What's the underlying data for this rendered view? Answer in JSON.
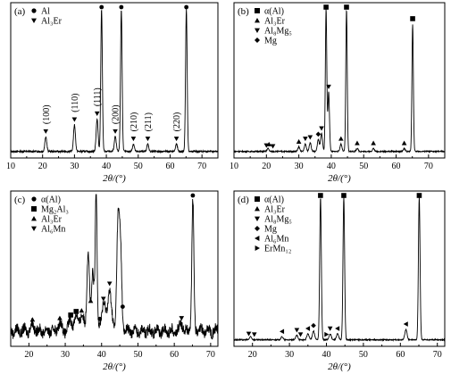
{
  "chart_data": [
    {
      "type": "line",
      "panel_label": "(a)",
      "xlabel": "2θ/(°)",
      "xlim": [
        10,
        75
      ],
      "xticks": [
        10,
        20,
        30,
        40,
        50,
        60,
        70
      ],
      "legend": [
        {
          "marker": "circle",
          "label": "Al"
        },
        {
          "marker": "tri-down",
          "label": "Al₃Er"
        }
      ],
      "baseline": 0.02,
      "noise": 0.006,
      "peaks": [
        {
          "x": 21.0,
          "h": 0.1,
          "w": 0.3
        },
        {
          "x": 30.0,
          "h": 0.18,
          "w": 0.3
        },
        {
          "x": 37.1,
          "h": 0.22,
          "w": 0.3
        },
        {
          "x": 38.5,
          "h": 0.96,
          "w": 0.25
        },
        {
          "x": 42.8,
          "h": 0.1,
          "w": 0.3
        },
        {
          "x": 44.7,
          "h": 0.96,
          "w": 0.25
        },
        {
          "x": 48.5,
          "h": 0.05,
          "w": 0.3
        },
        {
          "x": 53.0,
          "h": 0.05,
          "w": 0.3
        },
        {
          "x": 62.0,
          "h": 0.05,
          "w": 0.3
        },
        {
          "x": 65.1,
          "h": 0.96,
          "w": 0.25
        }
      ],
      "markers": [
        {
          "x": 38.5,
          "sym": "circle"
        },
        {
          "x": 44.7,
          "sym": "circle"
        },
        {
          "x": 65.1,
          "sym": "circle"
        },
        {
          "x": 21.0,
          "sym": "tri-down"
        },
        {
          "x": 30.0,
          "sym": "tri-down"
        },
        {
          "x": 37.1,
          "sym": "tri-down"
        },
        {
          "x": 42.8,
          "sym": "tri-down"
        },
        {
          "x": 48.5,
          "sym": "tri-down"
        },
        {
          "x": 53.0,
          "sym": "tri-down"
        },
        {
          "x": 62.0,
          "sym": "tri-down"
        }
      ],
      "annotations": [
        {
          "x": 21.0,
          "text": "(100)"
        },
        {
          "x": 30.0,
          "text": "(110)"
        },
        {
          "x": 37.1,
          "text": "(111)"
        },
        {
          "x": 42.8,
          "text": "(200)"
        },
        {
          "x": 48.5,
          "text": "(210)"
        },
        {
          "x": 53.0,
          "text": "(211)"
        },
        {
          "x": 62.0,
          "text": "(220)"
        }
      ]
    },
    {
      "type": "line",
      "panel_label": "(b)",
      "xlabel": "2θ/(°)",
      "xlim": [
        10,
        75
      ],
      "xticks": [
        10,
        20,
        30,
        40,
        50,
        60,
        70
      ],
      "legend": [
        {
          "marker": "square",
          "label": "α(Al)"
        },
        {
          "marker": "tri-up",
          "label": "Al₃Er"
        },
        {
          "marker": "tri-down",
          "label": "Al₈Mg₅"
        },
        {
          "marker": "diamond",
          "label": "Mg"
        }
      ],
      "baseline": 0.02,
      "noise": 0.004,
      "peaks": [
        {
          "x": 20.5,
          "h": 0.02,
          "w": 0.3
        },
        {
          "x": 30.0,
          "h": 0.03,
          "w": 0.3
        },
        {
          "x": 32.0,
          "h": 0.05,
          "w": 0.3
        },
        {
          "x": 33.5,
          "h": 0.06,
          "w": 0.3
        },
        {
          "x": 36.0,
          "h": 0.08,
          "w": 0.3
        },
        {
          "x": 37.0,
          "h": 0.12,
          "w": 0.3
        },
        {
          "x": 38.4,
          "h": 0.96,
          "w": 0.22
        },
        {
          "x": 39.2,
          "h": 0.4,
          "w": 0.25
        },
        {
          "x": 43.0,
          "h": 0.05,
          "w": 0.3
        },
        {
          "x": 44.7,
          "h": 0.96,
          "w": 0.22
        },
        {
          "x": 48.0,
          "h": 0.02,
          "w": 0.3
        },
        {
          "x": 53.0,
          "h": 0.02,
          "w": 0.3
        },
        {
          "x": 62.5,
          "h": 0.02,
          "w": 0.3
        },
        {
          "x": 65.1,
          "h": 0.86,
          "w": 0.22
        }
      ],
      "markers": [
        {
          "x": 38.4,
          "sym": "square"
        },
        {
          "x": 44.7,
          "sym": "square"
        },
        {
          "x": 65.1,
          "sym": "square"
        },
        {
          "x": 39.2,
          "sym": "tri-down"
        },
        {
          "x": 20.0,
          "sym": "tri-down"
        },
        {
          "x": 22.0,
          "sym": "tri-down"
        },
        {
          "x": 20.8,
          "sym": "tri-up"
        },
        {
          "x": 30.0,
          "sym": "tri-up"
        },
        {
          "x": 32.0,
          "sym": "tri-down"
        },
        {
          "x": 33.5,
          "sym": "tri-down"
        },
        {
          "x": 36.0,
          "sym": "diamond"
        },
        {
          "x": 37.0,
          "sym": "tri-down"
        },
        {
          "x": 43.0,
          "sym": "tri-up"
        },
        {
          "x": 48.0,
          "sym": "tri-up"
        },
        {
          "x": 53.0,
          "sym": "tri-up"
        },
        {
          "x": 62.5,
          "sym": "tri-up"
        }
      ]
    },
    {
      "type": "line",
      "panel_label": "(c)",
      "xlabel": "2θ/(°)",
      "xlim": [
        15,
        72
      ],
      "xticks": [
        20,
        30,
        40,
        50,
        60,
        70
      ],
      "legend": [
        {
          "marker": "circle",
          "label": "α(Al)"
        },
        {
          "marker": "square",
          "label": "Mg₂Al₃"
        },
        {
          "marker": "tri-up",
          "label": "Al₃Er"
        },
        {
          "marker": "tri-down",
          "label": "Al₆Mn"
        }
      ],
      "baseline": 0.08,
      "noise": 0.035,
      "peaks": [
        {
          "x": 21.0,
          "h": 0.04,
          "w": 0.5
        },
        {
          "x": 28.5,
          "h": 0.05,
          "w": 0.5
        },
        {
          "x": 31.5,
          "h": 0.07,
          "w": 0.5
        },
        {
          "x": 33.0,
          "h": 0.09,
          "w": 0.5
        },
        {
          "x": 34.5,
          "h": 0.1,
          "w": 0.6
        },
        {
          "x": 36.3,
          "h": 0.55,
          "w": 0.35
        },
        {
          "x": 37.6,
          "h": 0.4,
          "w": 0.35
        },
        {
          "x": 38.5,
          "h": 0.96,
          "w": 0.25
        },
        {
          "x": 40.5,
          "h": 0.18,
          "w": 0.6
        },
        {
          "x": 42.2,
          "h": 0.28,
          "w": 0.5
        },
        {
          "x": 44.5,
          "h": 0.72,
          "w": 0.35
        },
        {
          "x": 45.2,
          "h": 0.55,
          "w": 0.35
        },
        {
          "x": 62.0,
          "h": 0.05,
          "w": 0.4
        },
        {
          "x": 65.1,
          "h": 0.88,
          "w": 0.28
        }
      ],
      "markers": [
        {
          "x": 39.5,
          "sym": "circle"
        },
        {
          "x": 45.8,
          "sym": "circle"
        },
        {
          "x": 65.1,
          "sym": "circle"
        },
        {
          "x": 37.0,
          "sym": "tri-up"
        },
        {
          "x": 21.0,
          "sym": "tri-up"
        },
        {
          "x": 28.5,
          "sym": "tri-up"
        },
        {
          "x": 31.5,
          "sym": "square"
        },
        {
          "x": 33.0,
          "sym": "square"
        },
        {
          "x": 34.5,
          "sym": "tri-up"
        },
        {
          "x": 40.5,
          "sym": "tri-down"
        },
        {
          "x": 42.2,
          "sym": "tri-down"
        },
        {
          "x": 62.0,
          "sym": "tri-down"
        }
      ]
    },
    {
      "type": "line",
      "panel_label": "(d)",
      "xlabel": "2θ/(°)",
      "xlim": [
        15,
        72
      ],
      "xticks": [
        20,
        30,
        40,
        50,
        60,
        70
      ],
      "legend": [
        {
          "marker": "square",
          "label": "α(Al)"
        },
        {
          "marker": "tri-up",
          "label": "Al₃Er"
        },
        {
          "marker": "tri-down",
          "label": "Al₈Mg₅"
        },
        {
          "marker": "diamond",
          "label": "Mg"
        },
        {
          "marker": "tri-left",
          "label": "Al₆Mn"
        },
        {
          "marker": "tri-right",
          "label": "ErMn₁₂"
        }
      ],
      "baseline": 0.02,
      "noise": 0.004,
      "peaks": [
        {
          "x": 19.5,
          "h": 0.02,
          "w": 0.3
        },
        {
          "x": 28.0,
          "h": 0.02,
          "w": 0.3
        },
        {
          "x": 32.0,
          "h": 0.03,
          "w": 0.3
        },
        {
          "x": 35.0,
          "h": 0.04,
          "w": 0.3
        },
        {
          "x": 36.5,
          "h": 0.06,
          "w": 0.3
        },
        {
          "x": 38.4,
          "h": 0.96,
          "w": 0.22
        },
        {
          "x": 41.0,
          "h": 0.04,
          "w": 0.3
        },
        {
          "x": 43.0,
          "h": 0.04,
          "w": 0.3
        },
        {
          "x": 44.7,
          "h": 0.96,
          "w": 0.22
        },
        {
          "x": 61.5,
          "h": 0.07,
          "w": 0.3
        },
        {
          "x": 65.1,
          "h": 0.96,
          "w": 0.22
        }
      ],
      "markers": [
        {
          "x": 38.4,
          "sym": "square"
        },
        {
          "x": 44.7,
          "sym": "square"
        },
        {
          "x": 65.1,
          "sym": "square"
        },
        {
          "x": 19.0,
          "sym": "tri-down"
        },
        {
          "x": 20.5,
          "sym": "tri-down"
        },
        {
          "x": 28.0,
          "sym": "tri-left"
        },
        {
          "x": 32.0,
          "sym": "tri-down"
        },
        {
          "x": 33.0,
          "sym": "tri-down"
        },
        {
          "x": 35.0,
          "sym": "tri-left"
        },
        {
          "x": 36.5,
          "sym": "diamond"
        },
        {
          "x": 40.0,
          "sym": "tri-right"
        },
        {
          "x": 41.0,
          "sym": "tri-down"
        },
        {
          "x": 43.0,
          "sym": "tri-left"
        },
        {
          "x": 61.5,
          "sym": "tri-left"
        }
      ]
    }
  ]
}
